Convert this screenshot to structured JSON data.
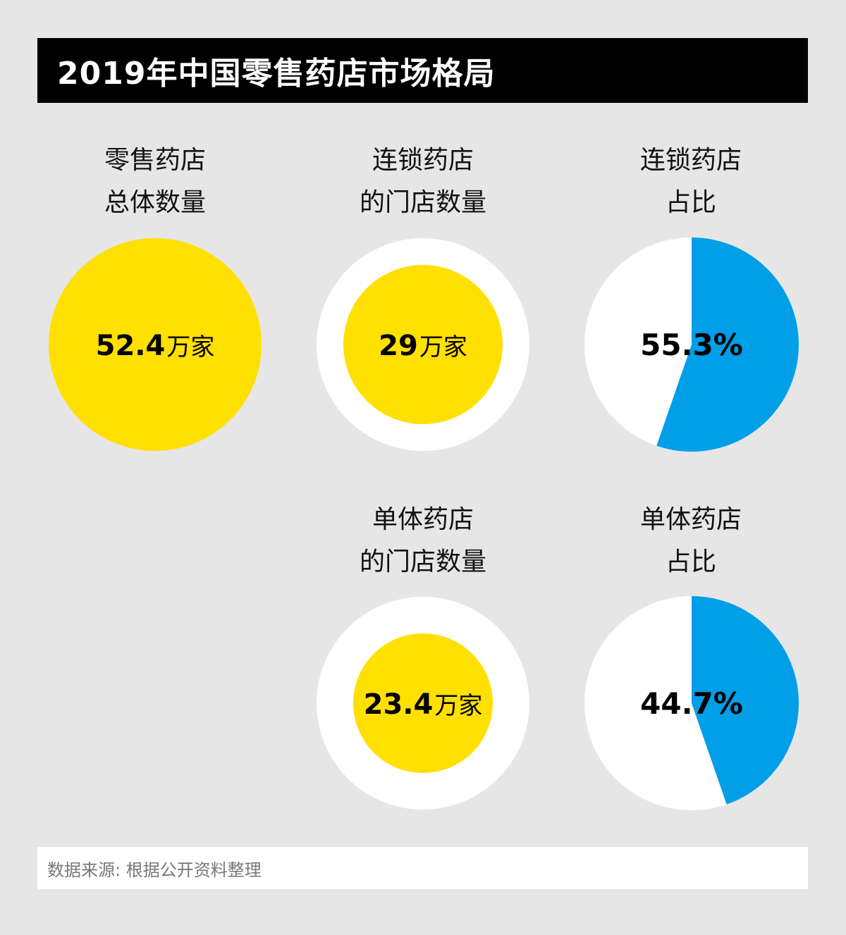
{
  "title": "2019年中国零售药店市场格局",
  "source": "数据来源: 根据公开资料整理",
  "colors": {
    "yellow": "#ffe000",
    "blue": "#009fe8",
    "white": "#ffffff",
    "background": "#e6e6e6"
  },
  "chart_data": [
    {
      "type": "bubble",
      "label_line1": "零售药店",
      "label_line2": "总体数量",
      "value": 52.4,
      "value_text": "52.4",
      "unit": "万家"
    },
    {
      "type": "bubble",
      "label_line1": "连锁药店",
      "label_line2": "的门店数量",
      "value": 29,
      "value_text": "29",
      "unit": "万家"
    },
    {
      "type": "pie",
      "label_line1": "连锁药店",
      "label_line2": "占比",
      "value": 55.3,
      "value_text": "55.3%"
    },
    {
      "type": "bubble",
      "label_line1": "单体药店",
      "label_line2": "的门店数量",
      "value": 23.4,
      "value_text": "23.4",
      "unit": "万家"
    },
    {
      "type": "pie",
      "label_line1": "单体药店",
      "label_line2": "占比",
      "value": 44.7,
      "value_text": "44.7%"
    }
  ]
}
